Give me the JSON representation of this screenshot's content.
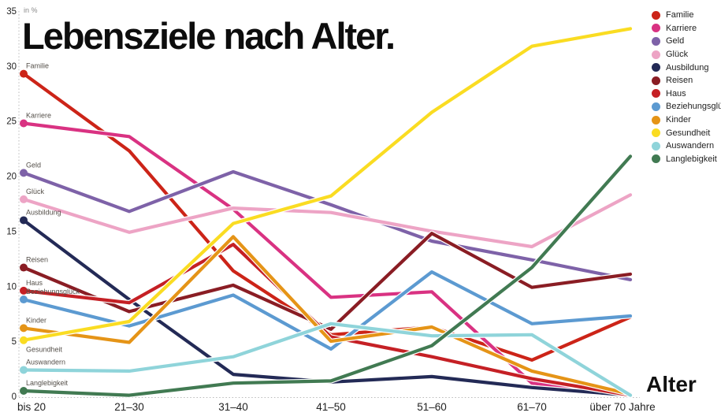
{
  "page": {
    "title": "Lebensziele nach Alter.",
    "y_axis_unit": "in %",
    "x_axis_title": "Alter"
  },
  "chart_data": {
    "type": "line",
    "title": "Lebensziele nach Alter.",
    "xlabel": "Alter",
    "ylabel": "in %",
    "ylim": [
      0,
      35
    ],
    "y_ticks": [
      0,
      5,
      10,
      15,
      20,
      25,
      30,
      35
    ],
    "grid": "off",
    "legend_position": "top-right",
    "categories": [
      "bis 20",
      "21–30",
      "31–40",
      "41–50",
      "51–60",
      "61–70",
      "über 70 Jahre"
    ],
    "series": [
      {
        "name": "Familie",
        "color": "#cc2418",
        "values": [
          29.3,
          22.3,
          11.4,
          5.6,
          6.3,
          3.3,
          7.2
        ]
      },
      {
        "name": "Karriere",
        "color": "#d93282",
        "values": [
          24.8,
          23.6,
          17.0,
          9.0,
          9.5,
          1.2,
          0.2
        ]
      },
      {
        "name": "Geld",
        "color": "#7e62a8",
        "values": [
          20.3,
          16.8,
          20.4,
          17.4,
          14.1,
          12.4,
          10.6
        ]
      },
      {
        "name": "Glück",
        "color": "#eda4c5",
        "values": [
          17.9,
          14.9,
          17.1,
          16.7,
          15.0,
          13.6,
          18.3
        ]
      },
      {
        "name": "Ausbildung",
        "color": "#232a56",
        "values": [
          16.0,
          8.8,
          2.0,
          1.3,
          1.8,
          0.8,
          0.1
        ]
      },
      {
        "name": "Reisen",
        "color": "#8a1d24",
        "values": [
          11.7,
          7.7,
          10.1,
          6.1,
          14.8,
          9.9,
          11.1
        ]
      },
      {
        "name": "Haus",
        "color": "#c52025",
        "values": [
          9.6,
          8.5,
          13.8,
          5.4,
          3.6,
          1.6,
          0.1
        ]
      },
      {
        "name": "Beziehungsglück",
        "color": "#5c9ad1",
        "values": [
          8.8,
          6.4,
          9.2,
          4.3,
          11.3,
          6.6,
          7.3
        ]
      },
      {
        "name": "Kinder",
        "color": "#e59417",
        "values": [
          6.2,
          4.9,
          14.5,
          5.0,
          6.3,
          2.3,
          0.2
        ]
      },
      {
        "name": "Gesundheit",
        "color": "#fadc22",
        "values": [
          5.1,
          6.8,
          15.7,
          18.2,
          25.8,
          31.8,
          33.4
        ]
      },
      {
        "name": "Auswandern",
        "color": "#8fd4da",
        "values": [
          2.4,
          2.3,
          3.6,
          6.6,
          5.5,
          5.6,
          0.1
        ]
      },
      {
        "name": "Langlebigkeit",
        "color": "#417a52",
        "values": [
          0.5,
          0.1,
          1.2,
          1.4,
          4.6,
          11.7,
          21.8
        ]
      }
    ]
  }
}
